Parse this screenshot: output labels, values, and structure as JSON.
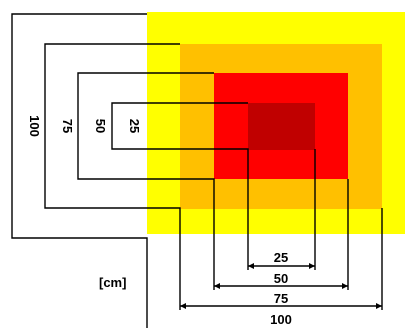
{
  "colors": {
    "square_100": "#FFFF00",
    "square_75": "#FFC000",
    "square_50": "#FF0000",
    "square_25": "#C00000",
    "lines": "#000000"
  },
  "squares": [
    {
      "size": 100,
      "color": "#FFFF00"
    },
    {
      "size": 75,
      "color": "#FFC000"
    },
    {
      "size": 50,
      "color": "#FF0000"
    },
    {
      "size": 25,
      "color": "#C00000"
    }
  ],
  "dimensions": {
    "vertical": [
      "100",
      "75",
      "50",
      "25"
    ],
    "horizontal": [
      "25",
      "50",
      "75",
      "100"
    ]
  },
  "unit_label": "[cm]"
}
